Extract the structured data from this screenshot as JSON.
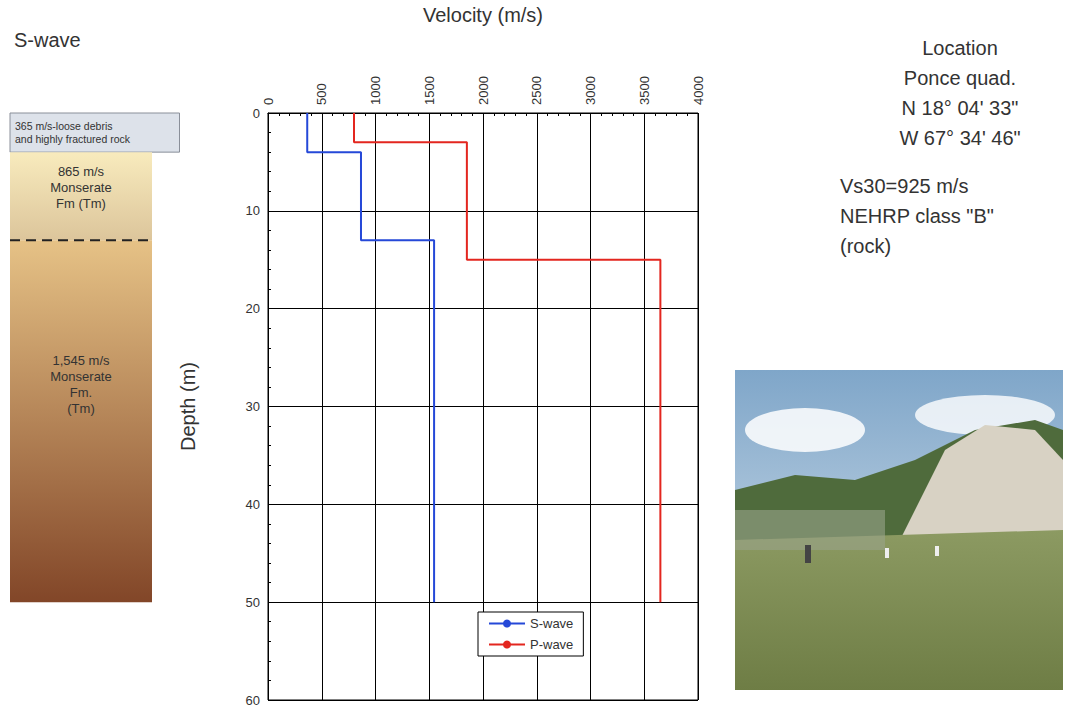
{
  "chart_data": {
    "type": "line",
    "column_title": "S-wave",
    "x_label": "Velocity (m/s)",
    "y_label": "Depth (m)",
    "xlim": [
      0,
      4000
    ],
    "xticks": [
      0,
      500,
      1000,
      1500,
      2000,
      2500,
      3000,
      3500,
      4000
    ],
    "ylim": [
      0,
      60
    ],
    "yticks": [
      0,
      10,
      20,
      30,
      40,
      50,
      60
    ],
    "grid": true,
    "legend": "lower center",
    "series": [
      {
        "name": "S-wave",
        "color": "#2548d8",
        "x": [
          365,
          365,
          865,
          865,
          1545,
          1545
        ],
        "y": [
          0,
          4,
          4,
          13,
          13,
          50
        ]
      },
      {
        "name": "P-wave",
        "color": "#e3261f",
        "x": [
          800,
          800,
          1850,
          1850,
          3650,
          3650
        ],
        "y": [
          0,
          3,
          3,
          15,
          15,
          50
        ]
      }
    ],
    "layers": [
      {
        "top": 0,
        "bottom": 4,
        "label": "365 m/s-loose debris\nand highly fractured rock",
        "color": "#dde2ea"
      },
      {
        "top": 4,
        "bottom": 13,
        "label": "865 m/s\nMonserate\nFm (Tm)",
        "color": "#f8ebbd"
      },
      {
        "top": 13,
        "bottom": 50,
        "label": "1,545 m/s\nMonserate\nFm.\n(Tm)",
        "color": "#e6c286"
      }
    ],
    "location": [
      "Location",
      "Ponce quad.",
      "N 18° 04' 33\"",
      "W 67° 34' 46\""
    ],
    "site_class": [
      "Vs30=925 m/s",
      "NEHRP class \"B\"",
      "(rock)"
    ]
  }
}
